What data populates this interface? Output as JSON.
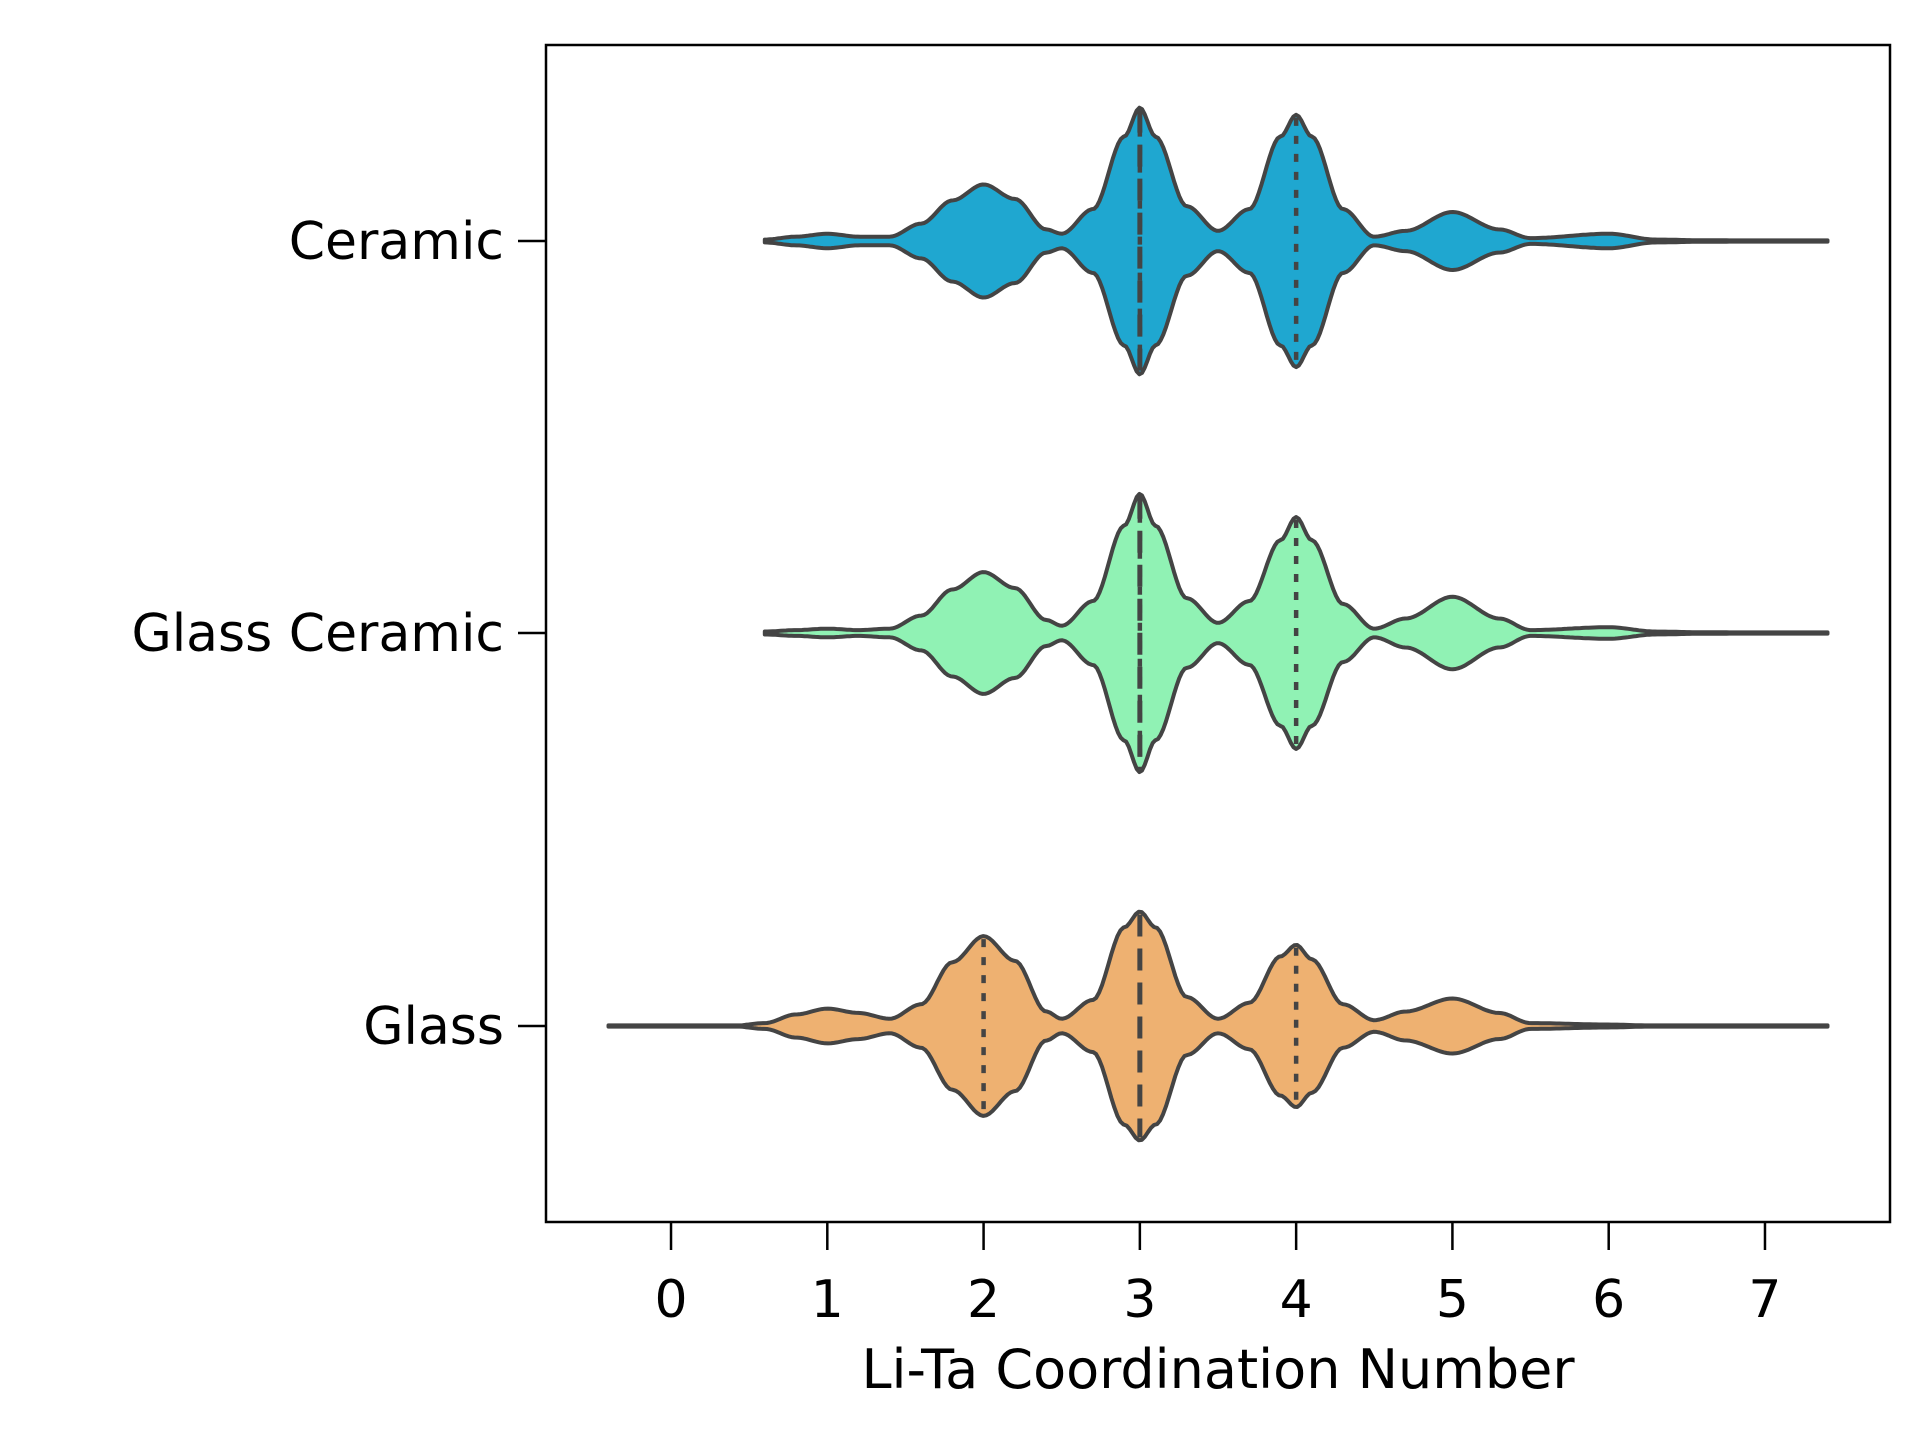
{
  "chart_data": {
    "type": "violin",
    "orientation": "horizontal",
    "xlabel": "Li-Ta Coordination Number",
    "ylabel": "",
    "xlim": [
      -0.8,
      7.8
    ],
    "x_ticks": [
      0,
      1,
      2,
      3,
      4,
      5,
      6,
      7
    ],
    "grid": false,
    "legend": "none",
    "categories": [
      "Ceramic",
      "Glass Ceramic",
      "Glass"
    ],
    "series": [
      {
        "category": "Ceramic",
        "color": "#1fa7d0",
        "min": 0.6,
        "max": 7.4,
        "quartiles": [
          3,
          3,
          4
        ],
        "density": [
          [
            0.6,
            0.01
          ],
          [
            0.8,
            0.03
          ],
          [
            1.0,
            0.05
          ],
          [
            1.2,
            0.03
          ],
          [
            1.4,
            0.03
          ],
          [
            1.6,
            0.12
          ],
          [
            1.8,
            0.28
          ],
          [
            2.0,
            0.39
          ],
          [
            2.2,
            0.29
          ],
          [
            2.4,
            0.08
          ],
          [
            2.5,
            0.05
          ],
          [
            2.7,
            0.22
          ],
          [
            2.9,
            0.72
          ],
          [
            3.0,
            0.92
          ],
          [
            3.1,
            0.72
          ],
          [
            3.3,
            0.24
          ],
          [
            3.5,
            0.07
          ],
          [
            3.7,
            0.22
          ],
          [
            3.9,
            0.72
          ],
          [
            4.0,
            0.87
          ],
          [
            4.1,
            0.72
          ],
          [
            4.3,
            0.22
          ],
          [
            4.5,
            0.03
          ],
          [
            4.7,
            0.07
          ],
          [
            5.0,
            0.2
          ],
          [
            5.3,
            0.08
          ],
          [
            5.5,
            0.02
          ],
          [
            6.0,
            0.05
          ],
          [
            6.3,
            0.01
          ],
          [
            6.6,
            0.005
          ],
          [
            7.4,
            0.0
          ]
        ]
      },
      {
        "category": "Glass Ceramic",
        "color": "#90f2b4",
        "min": 0.6,
        "max": 7.4,
        "quartiles": [
          3,
          3,
          4
        ],
        "density": [
          [
            0.6,
            0.01
          ],
          [
            0.8,
            0.02
          ],
          [
            1.0,
            0.03
          ],
          [
            1.2,
            0.02
          ],
          [
            1.4,
            0.03
          ],
          [
            1.6,
            0.12
          ],
          [
            1.8,
            0.3
          ],
          [
            2.0,
            0.42
          ],
          [
            2.2,
            0.31
          ],
          [
            2.4,
            0.09
          ],
          [
            2.5,
            0.05
          ],
          [
            2.7,
            0.22
          ],
          [
            2.9,
            0.74
          ],
          [
            3.0,
            0.96
          ],
          [
            3.1,
            0.74
          ],
          [
            3.3,
            0.24
          ],
          [
            3.5,
            0.07
          ],
          [
            3.7,
            0.22
          ],
          [
            3.9,
            0.64
          ],
          [
            4.0,
            0.8
          ],
          [
            4.1,
            0.64
          ],
          [
            4.3,
            0.2
          ],
          [
            4.5,
            0.03
          ],
          [
            4.7,
            0.1
          ],
          [
            5.0,
            0.25
          ],
          [
            5.3,
            0.1
          ],
          [
            5.5,
            0.02
          ],
          [
            6.0,
            0.04
          ],
          [
            6.3,
            0.01
          ],
          [
            6.6,
            0.005
          ],
          [
            7.4,
            0.0
          ]
        ]
      },
      {
        "category": "Glass",
        "color": "#eeb171",
        "min": -0.4,
        "max": 7.4,
        "quartiles": [
          2,
          3,
          4
        ],
        "density": [
          [
            -0.4,
            0.0
          ],
          [
            0.0,
            0.0
          ],
          [
            0.4,
            0.002
          ],
          [
            0.6,
            0.02
          ],
          [
            0.8,
            0.08
          ],
          [
            1.0,
            0.12
          ],
          [
            1.2,
            0.09
          ],
          [
            1.4,
            0.05
          ],
          [
            1.6,
            0.15
          ],
          [
            1.8,
            0.44
          ],
          [
            2.0,
            0.62
          ],
          [
            2.2,
            0.45
          ],
          [
            2.4,
            0.1
          ],
          [
            2.5,
            0.05
          ],
          [
            2.7,
            0.18
          ],
          [
            2.9,
            0.68
          ],
          [
            3.0,
            0.79
          ],
          [
            3.1,
            0.68
          ],
          [
            3.3,
            0.2
          ],
          [
            3.5,
            0.05
          ],
          [
            3.7,
            0.16
          ],
          [
            3.9,
            0.48
          ],
          [
            4.0,
            0.56
          ],
          [
            4.1,
            0.46
          ],
          [
            4.3,
            0.15
          ],
          [
            4.5,
            0.04
          ],
          [
            4.7,
            0.1
          ],
          [
            5.0,
            0.19
          ],
          [
            5.3,
            0.09
          ],
          [
            5.5,
            0.02
          ],
          [
            6.0,
            0.01
          ],
          [
            6.3,
            0.003
          ],
          [
            7.4,
            0.0
          ]
        ]
      }
    ]
  }
}
